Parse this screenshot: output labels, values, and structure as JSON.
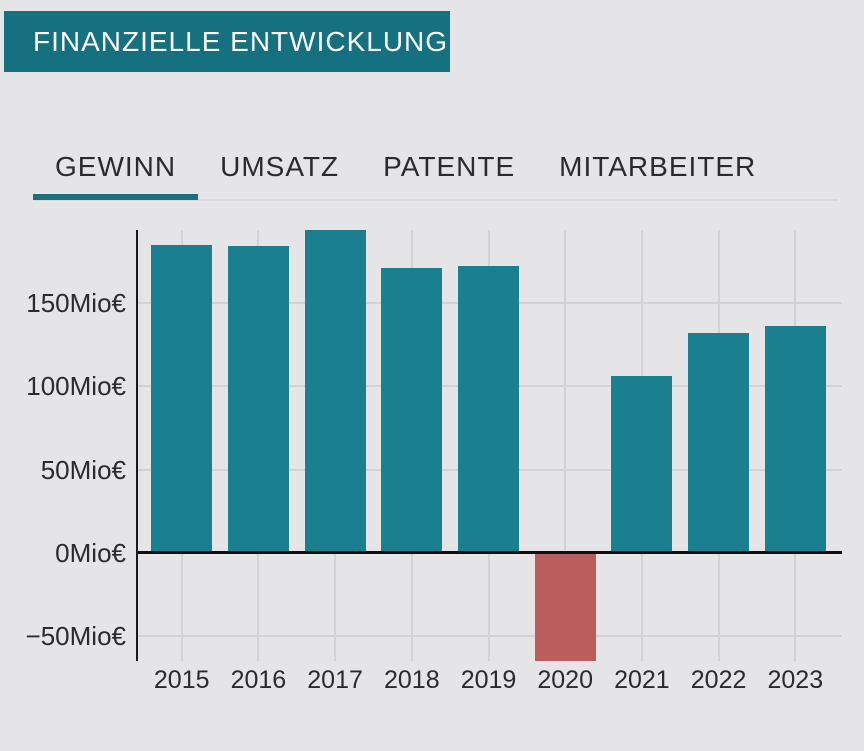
{
  "header": {
    "title": "FINANZIELLE ENTWICKLUNG"
  },
  "tabs": [
    {
      "label": "GEWINN",
      "active": true
    },
    {
      "label": "UMSATZ",
      "active": false
    },
    {
      "label": "PATENTE",
      "active": false
    },
    {
      "label": "MITARBEITER",
      "active": false
    }
  ],
  "colors": {
    "background": "#e5e5e8",
    "banner_bg": "#15707f",
    "banner_text": "#fafafa",
    "tab_text": "#2b2b2b",
    "active_tab_underline": "#17717f",
    "tab_bar_border": "#d8d8db",
    "bar_positive": "#1a808f",
    "bar_negative": "#b95d5d",
    "gridline": "#d2d2d6",
    "axis": "#1a1a1a",
    "axis_label": "#2b2b2b"
  },
  "chart_data": {
    "type": "bar",
    "title": "",
    "xlabel": "",
    "ylabel": "",
    "unit": "Mio€",
    "active_series": "GEWINN",
    "categories": [
      "2015",
      "2016",
      "2017",
      "2018",
      "2019",
      "2020",
      "2021",
      "2022",
      "2023"
    ],
    "values": [
      185,
      184,
      194,
      171,
      172,
      -65,
      106,
      132,
      136
    ],
    "negative_categories": [
      "2020"
    ],
    "yticks": [
      {
        "value": 150,
        "label": "150Mio€"
      },
      {
        "value": 100,
        "label": "100Mio€"
      },
      {
        "value": 50,
        "label": "50Mio€"
      },
      {
        "value": 0,
        "label": "0Mio€"
      },
      {
        "value": -50,
        "label": "−50Mio€"
      }
    ],
    "ylim": [
      -65,
      194
    ],
    "grid": true,
    "legend": "none"
  }
}
